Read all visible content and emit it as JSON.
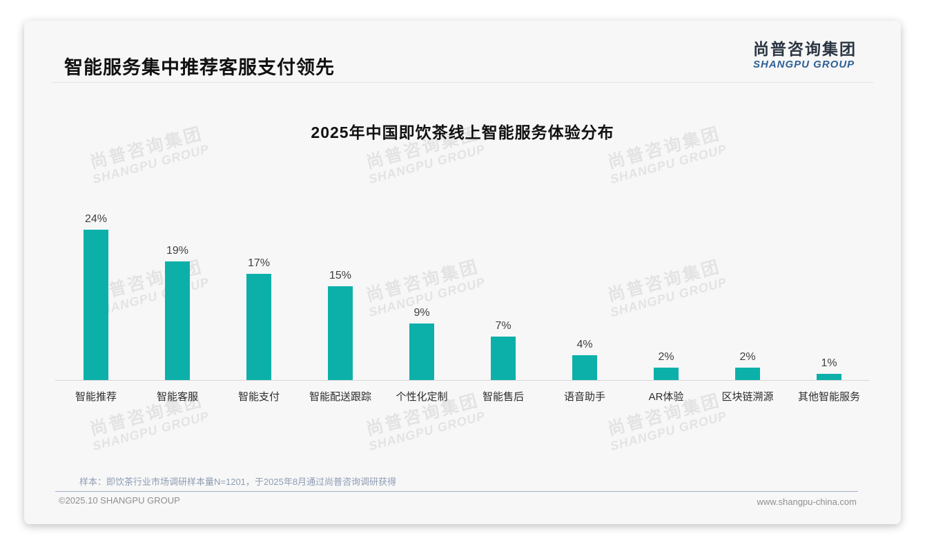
{
  "header": {
    "title": "智能服务集中推荐客服支付领先"
  },
  "logo": {
    "chinese": "尚普咨询集团",
    "english": "SHANGPU GROUP"
  },
  "watermark": {
    "line1": "尚普咨询集团",
    "line2": "SHANGPU GROUP"
  },
  "chart_data": {
    "type": "bar",
    "title": "2025年中国即饮茶线上智能服务体验分布",
    "categories": [
      "智能推荐",
      "智能客服",
      "智能支付",
      "智能配送跟踪",
      "个性化定制",
      "智能售后",
      "语音助手",
      "AR体验",
      "区块链溯源",
      "其他智能服务"
    ],
    "values": [
      24,
      19,
      17,
      15,
      9,
      7,
      4,
      2,
      2,
      1
    ],
    "value_labels": [
      "24%",
      "19%",
      "17%",
      "15%",
      "9%",
      "7%",
      "4%",
      "2%",
      "2%",
      "1%"
    ],
    "unit": "%",
    "xlabel": "",
    "ylabel": "",
    "ylim": [
      0,
      26
    ],
    "grid": false,
    "legend_position": "none",
    "bar_color": "#0CB0A9"
  },
  "colors": {
    "bar": "#0CB0A9",
    "logo_blue": "#2E6096",
    "note_text": "#8D9DB1"
  },
  "footnote": {
    "sample_note": "样本：即饮茶行业市场调研样本量N=1201，于2025年8月通过尚普咨询调研获得"
  },
  "footer": {
    "copyright": "©2025.10 SHANGPU GROUP",
    "website": "www.shangpu-china.com"
  }
}
